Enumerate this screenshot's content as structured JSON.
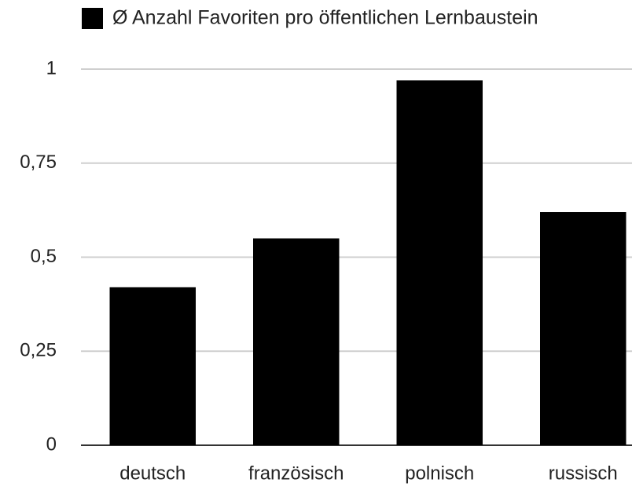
{
  "chart_data": {
    "type": "bar",
    "categories": [
      "deutsch",
      "französisch",
      "polnisch",
      "russisch"
    ],
    "series": [
      {
        "name": "Ø Anzahl Favoriten pro öffentlichen Lernbaustein",
        "color": "#000000",
        "values": [
          0.42,
          0.55,
          0.97,
          0.62
        ]
      }
    ],
    "ylim": [
      0,
      1
    ],
    "yticks": [
      0,
      {
        "value": 0.25,
        "label": "0,25"
      },
      {
        "value": 0.5,
        "label": "0,5"
      },
      {
        "value": 0.75,
        "label": "0,75"
      },
      1
    ],
    "grid": true,
    "legend": "top"
  }
}
